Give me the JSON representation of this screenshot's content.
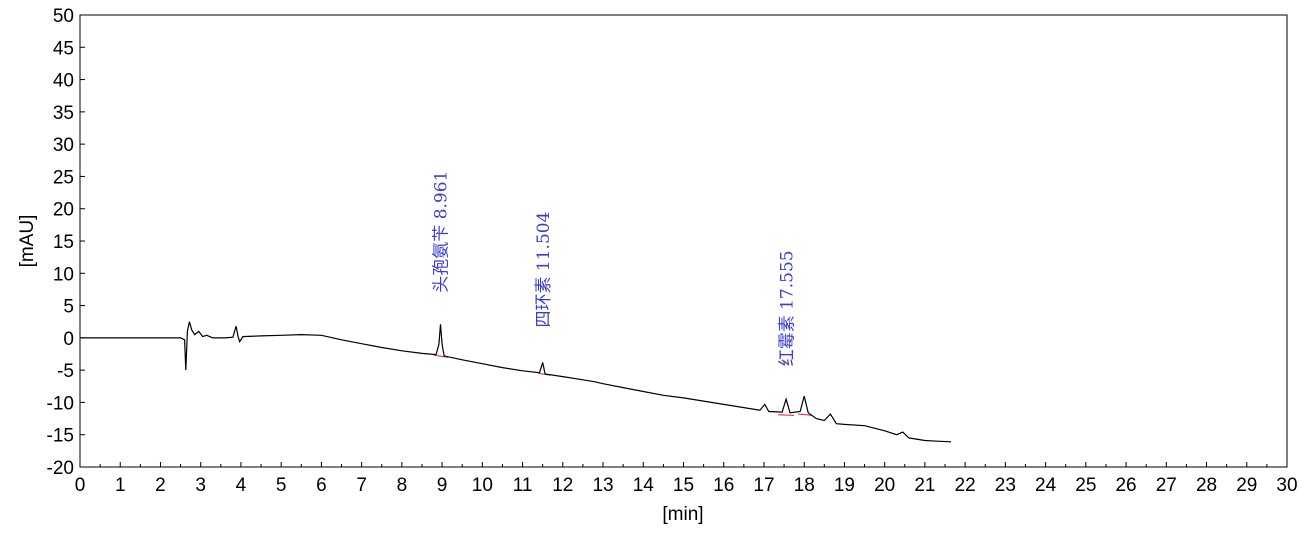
{
  "chart_data": {
    "type": "line",
    "xlabel": "[min]",
    "ylabel": "[mAU]",
    "xlim": [
      0,
      30
    ],
    "ylim": [
      -20,
      50
    ],
    "xticks": [
      "0",
      "1",
      "2",
      "3",
      "4",
      "5",
      "6",
      "7",
      "8",
      "9",
      "10",
      "11",
      "12",
      "13",
      "14",
      "15",
      "16",
      "17",
      "18",
      "19",
      "20",
      "21",
      "22",
      "23",
      "24",
      "25",
      "26",
      "27",
      "28",
      "29",
      "30"
    ],
    "yticks": [
      "50",
      "45",
      "40",
      "35",
      "30",
      "25",
      "20",
      "15",
      "10",
      "5",
      "0",
      "-5",
      "-10",
      "-15",
      "-20"
    ],
    "grid": false,
    "colors": {
      "trace": "#000000",
      "baseline": "#e02020",
      "label": "#3b3bd6"
    },
    "series": [
      {
        "points": [
          [
            0.0,
            0.0
          ],
          [
            1.5,
            0.0
          ],
          [
            2.5,
            0.0
          ],
          [
            2.6,
            -0.3
          ],
          [
            2.63,
            -5.0
          ],
          [
            2.67,
            1.0
          ],
          [
            2.72,
            2.5
          ],
          [
            2.78,
            1.2
          ],
          [
            2.85,
            0.5
          ],
          [
            2.95,
            1.0
          ],
          [
            3.05,
            0.2
          ],
          [
            3.15,
            0.4
          ],
          [
            3.3,
            0.0
          ],
          [
            3.6,
            0.0
          ],
          [
            3.8,
            0.1
          ],
          [
            3.88,
            1.8
          ],
          [
            3.93,
            0.2
          ],
          [
            3.97,
            -0.6
          ],
          [
            4.05,
            0.2
          ],
          [
            4.5,
            0.3
          ],
          [
            5.0,
            0.4
          ],
          [
            5.5,
            0.5
          ],
          [
            6.0,
            0.4
          ],
          [
            6.5,
            -0.3
          ],
          [
            7.0,
            -0.9
          ],
          [
            7.5,
            -1.5
          ],
          [
            8.0,
            -2.0
          ],
          [
            8.5,
            -2.4
          ],
          [
            8.85,
            -2.6
          ],
          [
            8.92,
            -1.0
          ],
          [
            8.96,
            2.1
          ],
          [
            9.0,
            -1.0
          ],
          [
            9.05,
            -2.8
          ],
          [
            9.5,
            -3.4
          ],
          [
            10.0,
            -4.0
          ],
          [
            10.5,
            -4.6
          ],
          [
            11.0,
            -5.1
          ],
          [
            11.42,
            -5.4
          ],
          [
            11.5,
            -3.8
          ],
          [
            11.56,
            -5.6
          ],
          [
            12.0,
            -6.0
          ],
          [
            12.5,
            -6.5
          ],
          [
            12.8,
            -6.8
          ],
          [
            13.0,
            -7.1
          ],
          [
            13.5,
            -7.7
          ],
          [
            14.0,
            -8.3
          ],
          [
            14.5,
            -8.9
          ],
          [
            15.0,
            -9.3
          ],
          [
            15.5,
            -9.8
          ],
          [
            16.0,
            -10.3
          ],
          [
            16.5,
            -10.8
          ],
          [
            16.9,
            -11.2
          ],
          [
            17.02,
            -10.3
          ],
          [
            17.12,
            -11.4
          ],
          [
            17.45,
            -11.5
          ],
          [
            17.55,
            -9.5
          ],
          [
            17.65,
            -11.6
          ],
          [
            17.9,
            -11.4
          ],
          [
            18.0,
            -9.0
          ],
          [
            18.1,
            -11.6
          ],
          [
            18.3,
            -12.5
          ],
          [
            18.5,
            -12.8
          ],
          [
            18.65,
            -11.8
          ],
          [
            18.8,
            -13.3
          ],
          [
            19.0,
            -13.4
          ],
          [
            19.5,
            -13.6
          ],
          [
            20.0,
            -14.4
          ],
          [
            20.3,
            -15.0
          ],
          [
            20.45,
            -14.6
          ],
          [
            20.6,
            -15.5
          ],
          [
            21.0,
            -15.9
          ],
          [
            21.3,
            -16.0
          ],
          [
            21.65,
            -16.1
          ]
        ]
      }
    ],
    "baselines": [
      [
        [
          8.8,
          -2.7
        ],
        [
          9.15,
          -3.0
        ]
      ],
      [
        [
          11.4,
          -5.5
        ],
        [
          11.7,
          -5.8
        ]
      ],
      [
        [
          17.35,
          -11.9
        ],
        [
          17.75,
          -12.0
        ]
      ],
      [
        [
          17.85,
          -11.8
        ],
        [
          18.2,
          -12.0
        ]
      ]
    ],
    "annotations": [
      {
        "x": 8.961,
        "y": 7.0,
        "text": "头孢氨苄 8.961"
      },
      {
        "x": 11.504,
        "y": 1.6,
        "text": "四环素 11.504"
      },
      {
        "x": 17.555,
        "y": -4.4,
        "text": "红霉素 17.555"
      }
    ]
  }
}
